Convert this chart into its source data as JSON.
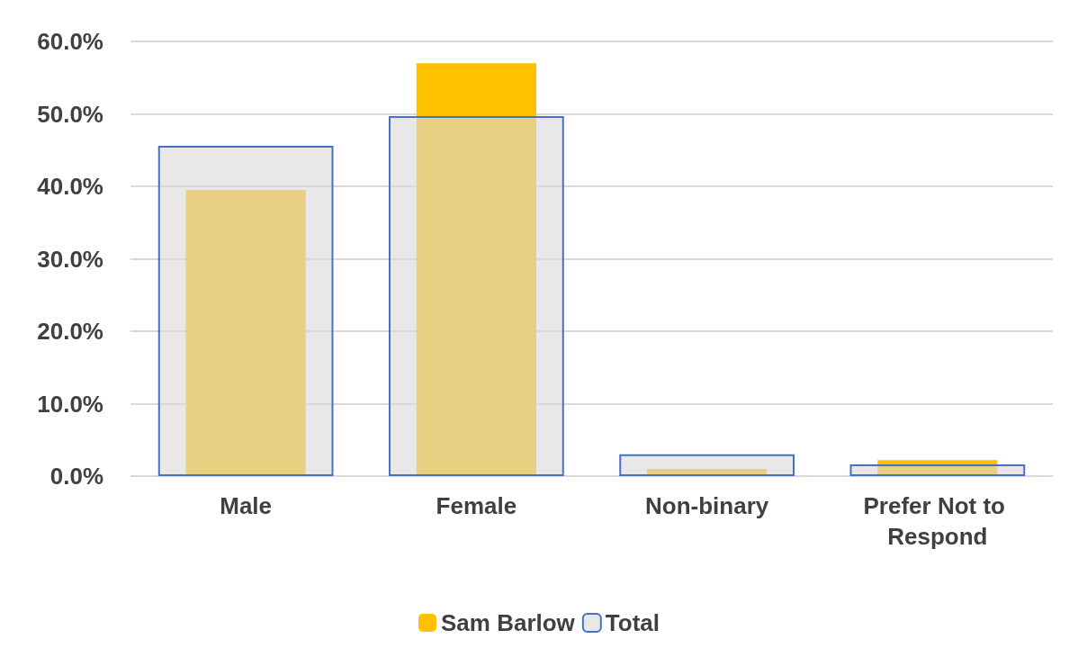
{
  "chart_data": {
    "type": "bar",
    "categories": [
      "Male",
      "Female",
      "Non-binary",
      "Prefer Not to Respond"
    ],
    "series": [
      {
        "name": "Sam Barlow",
        "color": "#ffc000",
        "values": [
          39.5,
          57.0,
          1.0,
          2.2
        ]
      },
      {
        "name": "Total",
        "color": "#4472c4",
        "values": [
          45.6,
          49.7,
          3.0,
          1.6
        ]
      }
    ],
    "ylim": [
      0,
      60
    ],
    "yticks": [
      {
        "value": 0,
        "label": "0.0%"
      },
      {
        "value": 10,
        "label": "10.0%"
      },
      {
        "value": 20,
        "label": "20.0%"
      },
      {
        "value": 30,
        "label": "30.0%"
      },
      {
        "value": 40,
        "label": "40.0%"
      },
      {
        "value": 50,
        "label": "50.0%"
      },
      {
        "value": 60,
        "label": "60.0%"
      }
    ],
    "grid": "y",
    "legend": "bottom"
  }
}
